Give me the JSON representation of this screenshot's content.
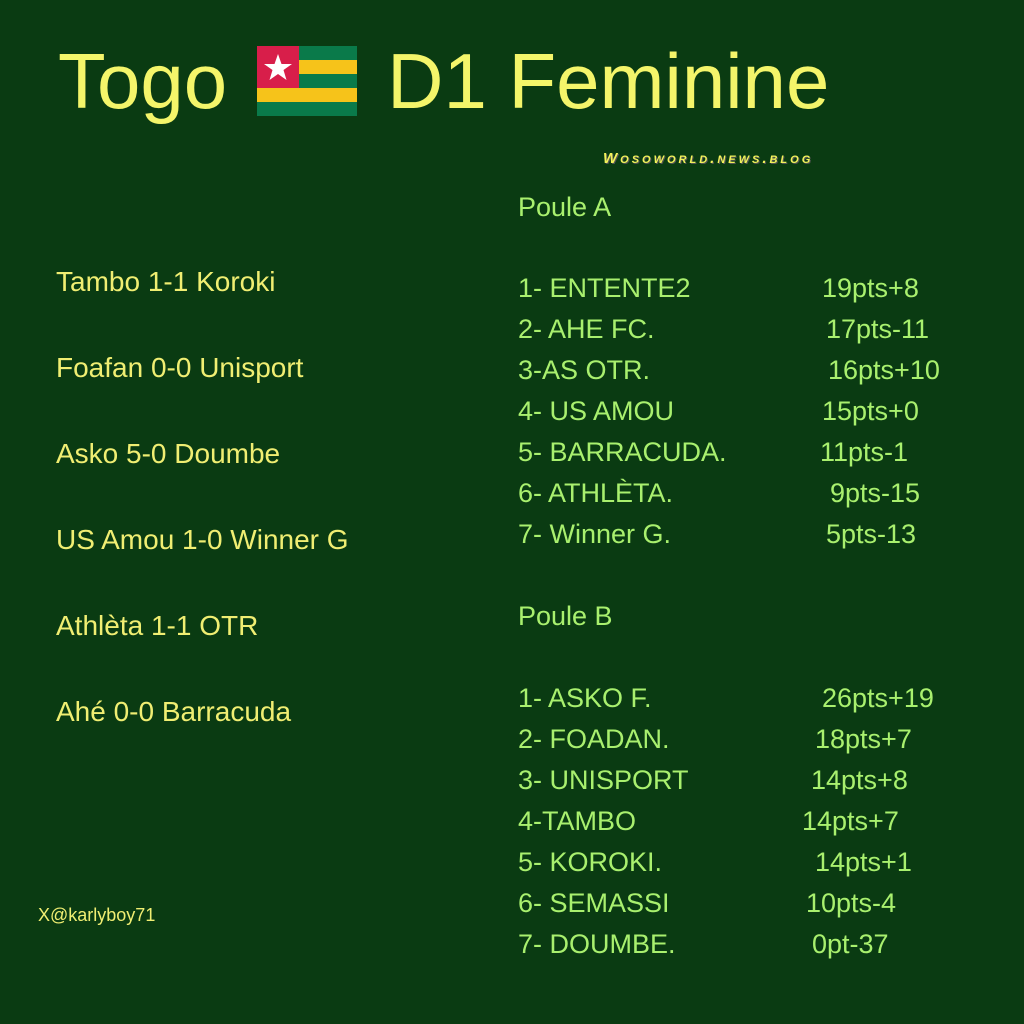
{
  "header": {
    "title_left": "Togo",
    "title_right": "D1 Feminine",
    "flag_icon": "togo-flag-icon",
    "watermark": "Wosoworld.news.blog"
  },
  "colors": {
    "background": "#0a3b12",
    "title": "#f4f56a",
    "results_text": "#f0ee72",
    "standings_text": "#a9f06e"
  },
  "results": [
    "Tambo 1-1 Koroki",
    "Foafan 0-0 Unisport",
    "Asko 5-0 Doumbe",
    "US Amou 1-0 Winner G",
    "Athlèta 1-1 OTR",
    "Ahé 0-0 Barracuda"
  ],
  "pools": [
    {
      "title": "Poule A",
      "rows": [
        {
          "team": "1- ENTENTE2",
          "pts": "19pts+8"
        },
        {
          "team": "2- AHE FC.",
          "pts": "17pts-11"
        },
        {
          "team": "3-AS OTR.",
          "pts": "16pts+10"
        },
        {
          "team": "4- US AMOU",
          "pts": "15pts+0"
        },
        {
          "team": "5- BARRACUDA.",
          "pts": "11pts-1"
        },
        {
          "team": "6- ATHLÈTA.",
          "pts": "9pts-15"
        },
        {
          "team": "7- Winner G.",
          "pts": "5pts-13"
        }
      ]
    },
    {
      "title": "Poule B",
      "rows": [
        {
          "team": "1- ASKO F.",
          "pts": "26pts+19"
        },
        {
          "team": "2- FOADAN.",
          "pts": "18pts+7"
        },
        {
          "team": "3- UNISPORT",
          "pts": "14pts+8"
        },
        {
          "team": "4-TAMBO",
          "pts": "14pts+7"
        },
        {
          "team": "5- KOROKI.",
          "pts": "14pts+1"
        },
        {
          "team": "6- SEMASSI",
          "pts": "10pts-4"
        },
        {
          "team": "7- DOUMBE.",
          "pts": "0pt-37"
        }
      ]
    }
  ],
  "footer": {
    "handle": "X@karlyboy71"
  }
}
